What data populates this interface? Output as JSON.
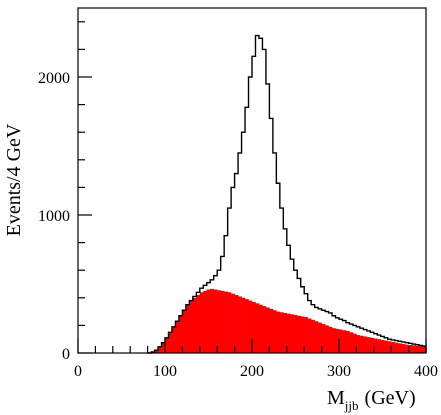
{
  "chart_data": {
    "type": "histogram",
    "title": "",
    "xlabel_main": "M",
    "xlabel_sub": "jjb",
    "xlabel_unit": "(GeV)",
    "ylabel": "Events/4 GeV",
    "xlim": [
      0,
      400
    ],
    "ylim": [
      0,
      2500
    ],
    "bin_width": 4,
    "grid": false,
    "legend": "none",
    "x_ticks": [
      0,
      100,
      200,
      300,
      400
    ],
    "x_tick_labels": [
      "0",
      "100",
      "200",
      "300",
      "400"
    ],
    "y_ticks": [
      0,
      1000,
      2000
    ],
    "y_tick_labels": [
      "0",
      "1000",
      "2000"
    ],
    "colors": {
      "total": "#000000",
      "background": "#ff0000"
    },
    "series": [
      {
        "style": "outline",
        "bins": [
          [
            80,
            0
          ],
          [
            84,
            8
          ],
          [
            88,
            20
          ],
          [
            92,
            45
          ],
          [
            96,
            75
          ],
          [
            100,
            110
          ],
          [
            104,
            150
          ],
          [
            108,
            190
          ],
          [
            112,
            230
          ],
          [
            116,
            270
          ],
          [
            120,
            310
          ],
          [
            124,
            350
          ],
          [
            128,
            380
          ],
          [
            132,
            410
          ],
          [
            136,
            440
          ],
          [
            140,
            470
          ],
          [
            144,
            490
          ],
          [
            148,
            510
          ],
          [
            152,
            530
          ],
          [
            156,
            560
          ],
          [
            160,
            600
          ],
          [
            164,
            700
          ],
          [
            168,
            850
          ],
          [
            172,
            1050
          ],
          [
            176,
            1200
          ],
          [
            180,
            1300
          ],
          [
            184,
            1450
          ],
          [
            188,
            1600
          ],
          [
            192,
            1780
          ],
          [
            196,
            2000
          ],
          [
            200,
            2150
          ],
          [
            204,
            2300
          ],
          [
            208,
            2280
          ],
          [
            212,
            2200
          ],
          [
            216,
            1950
          ],
          [
            220,
            1700
          ],
          [
            224,
            1450
          ],
          [
            228,
            1230
          ],
          [
            232,
            1050
          ],
          [
            236,
            900
          ],
          [
            240,
            780
          ],
          [
            244,
            680
          ],
          [
            248,
            600
          ],
          [
            252,
            540
          ],
          [
            256,
            480
          ],
          [
            260,
            430
          ],
          [
            264,
            380
          ],
          [
            268,
            350
          ],
          [
            272,
            330
          ],
          [
            276,
            320
          ],
          [
            280,
            310
          ],
          [
            284,
            300
          ],
          [
            288,
            290
          ],
          [
            292,
            270
          ],
          [
            296,
            255
          ],
          [
            300,
            245
          ],
          [
            304,
            235
          ],
          [
            308,
            220
          ],
          [
            312,
            210
          ],
          [
            316,
            200
          ],
          [
            320,
            190
          ],
          [
            324,
            180
          ],
          [
            328,
            170
          ],
          [
            332,
            160
          ],
          [
            336,
            150
          ],
          [
            340,
            140
          ],
          [
            344,
            130
          ],
          [
            348,
            120
          ],
          [
            352,
            110
          ],
          [
            356,
            100
          ],
          [
            360,
            95
          ],
          [
            364,
            90
          ],
          [
            368,
            85
          ],
          [
            372,
            80
          ],
          [
            376,
            75
          ],
          [
            380,
            70
          ],
          [
            384,
            65
          ],
          [
            388,
            60
          ],
          [
            392,
            55
          ],
          [
            396,
            50
          ]
        ]
      },
      {
        "style": "filled",
        "bins": [
          [
            80,
            0
          ],
          [
            84,
            8
          ],
          [
            88,
            20
          ],
          [
            92,
            45
          ],
          [
            96,
            75
          ],
          [
            100,
            110
          ],
          [
            104,
            150
          ],
          [
            108,
            190
          ],
          [
            112,
            230
          ],
          [
            116,
            270
          ],
          [
            120,
            310
          ],
          [
            124,
            350
          ],
          [
            128,
            380
          ],
          [
            132,
            400
          ],
          [
            136,
            420
          ],
          [
            140,
            440
          ],
          [
            144,
            450
          ],
          [
            148,
            460
          ],
          [
            152,
            465
          ],
          [
            156,
            460
          ],
          [
            160,
            455
          ],
          [
            164,
            450
          ],
          [
            168,
            445
          ],
          [
            172,
            440
          ],
          [
            176,
            430
          ],
          [
            180,
            420
          ],
          [
            184,
            410
          ],
          [
            188,
            400
          ],
          [
            192,
            390
          ],
          [
            196,
            380
          ],
          [
            200,
            370
          ],
          [
            204,
            360
          ],
          [
            208,
            350
          ],
          [
            212,
            340
          ],
          [
            216,
            330
          ],
          [
            220,
            320
          ],
          [
            224,
            310
          ],
          [
            228,
            300
          ],
          [
            232,
            295
          ],
          [
            236,
            290
          ],
          [
            240,
            285
          ],
          [
            244,
            280
          ],
          [
            248,
            275
          ],
          [
            252,
            270
          ],
          [
            256,
            265
          ],
          [
            260,
            260
          ],
          [
            264,
            250
          ],
          [
            268,
            240
          ],
          [
            272,
            230
          ],
          [
            276,
            220
          ],
          [
            280,
            210
          ],
          [
            284,
            200
          ],
          [
            288,
            190
          ],
          [
            292,
            180
          ],
          [
            296,
            175
          ],
          [
            300,
            170
          ],
          [
            304,
            165
          ],
          [
            308,
            160
          ],
          [
            312,
            150
          ],
          [
            316,
            140
          ],
          [
            320,
            130
          ],
          [
            324,
            125
          ],
          [
            328,
            120
          ],
          [
            332,
            115
          ],
          [
            336,
            110
          ],
          [
            340,
            105
          ],
          [
            344,
            100
          ],
          [
            348,
            95
          ],
          [
            352,
            90
          ],
          [
            356,
            85
          ],
          [
            360,
            80
          ],
          [
            364,
            75
          ],
          [
            368,
            70
          ],
          [
            372,
            65
          ],
          [
            376,
            60
          ],
          [
            380,
            58
          ],
          [
            384,
            55
          ],
          [
            388,
            52
          ],
          [
            392,
            50
          ],
          [
            396,
            48
          ]
        ]
      }
    ]
  }
}
